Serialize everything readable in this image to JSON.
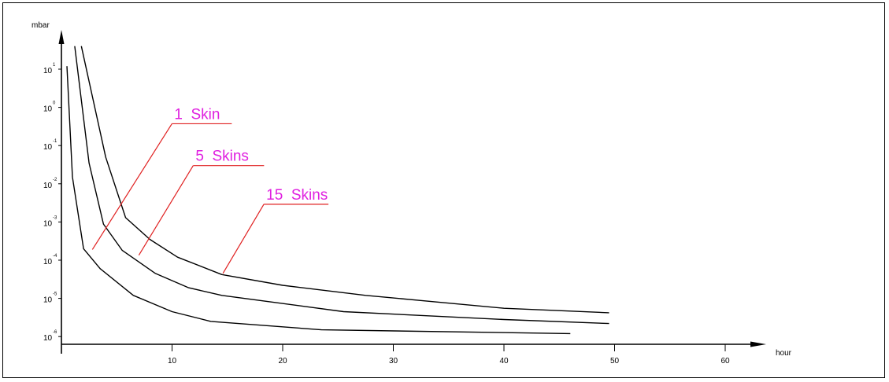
{
  "chart_data": {
    "type": "line",
    "ylabel": "mbar",
    "xlabel": "hour",
    "y_scale": "log",
    "xlim": [
      0,
      60
    ],
    "ylim": [
      1e-06,
      10
    ],
    "x_ticks": [
      {
        "value": 10,
        "label": "10"
      },
      {
        "value": 20,
        "label": "20"
      },
      {
        "value": 30,
        "label": "30"
      },
      {
        "value": 40,
        "label": "40"
      },
      {
        "value": 50,
        "label": "50"
      },
      {
        "value": 60,
        "label": "60"
      }
    ],
    "y_ticks": [
      {
        "exp": 1,
        "base": "10",
        "sup": "1"
      },
      {
        "exp": 0,
        "base": "10",
        "sup": "0"
      },
      {
        "exp": -1,
        "base": "10",
        "sup": "-1"
      },
      {
        "exp": -2,
        "base": "10",
        "sup": "-2"
      },
      {
        "exp": -3,
        "base": "10",
        "sup": "-3"
      },
      {
        "exp": -4,
        "base": "10",
        "sup": "-4"
      },
      {
        "exp": -5,
        "base": "10",
        "sup": "-5"
      },
      {
        "exp": -6,
        "base": "10",
        "sup": "-6"
      }
    ],
    "grid": false,
    "series": [
      {
        "name": "1 Skin",
        "points": [
          [
            0.5,
            12
          ],
          [
            1.0,
            0.015
          ],
          [
            2.0,
            0.0002
          ],
          [
            3.5,
            6e-05
          ],
          [
            6.5,
            1.2e-05
          ],
          [
            10,
            4.5e-06
          ],
          [
            13.5,
            2.5e-06
          ],
          [
            23.5,
            1.5e-06
          ],
          [
            46,
            1.2e-06
          ]
        ]
      },
      {
        "name": "5 Skins",
        "points": [
          [
            1.2,
            40
          ],
          [
            2.5,
            0.035
          ],
          [
            3.8,
            0.00088
          ],
          [
            5.5,
            0.00018
          ],
          [
            8.5,
            4.5e-05
          ],
          [
            11.5,
            1.9e-05
          ],
          [
            14.5,
            1.2e-05
          ],
          [
            25.5,
            4.5e-06
          ],
          [
            40,
            2.8e-06
          ],
          [
            49.5,
            2.2e-06
          ]
        ]
      },
      {
        "name": "15 Skins",
        "points": [
          [
            1.8,
            40
          ],
          [
            4.0,
            0.05
          ],
          [
            5.8,
            0.0013
          ],
          [
            8.0,
            0.00035
          ],
          [
            10.5,
            0.00012
          ],
          [
            14.5,
            4.2e-05
          ],
          [
            20,
            2.2e-05
          ],
          [
            27.5,
            1.2e-05
          ],
          [
            40,
            5.5e-06
          ],
          [
            49.5,
            4.2e-06
          ]
        ]
      }
    ],
    "annotations": [
      {
        "text": "1  Skin",
        "color": "#e020e0",
        "leader_color": "#e02020",
        "anchor_x": 2.8,
        "anchor_y": 0.00019
      },
      {
        "text": "5  Skins",
        "color": "#e020e0",
        "leader_color": "#e02020",
        "anchor_x": 7.0,
        "anchor_y": 0.000135
      },
      {
        "text": "15  Skins",
        "color": "#e020e0",
        "leader_color": "#e02020",
        "anchor_x": 14.6,
        "anchor_y": 4.5e-05
      }
    ]
  }
}
